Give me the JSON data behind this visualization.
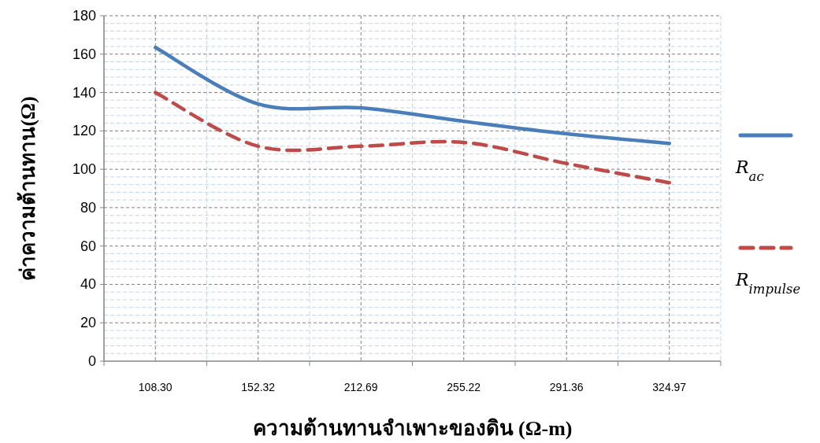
{
  "chart_data": {
    "type": "line",
    "xlabel": "ความต้านทานจำเพาะของดิน (Ω-m)",
    "ylabel": "ค่าความต้านทาน(Ω)",
    "categories": [
      "108.30",
      "152.32",
      "212.69",
      "255.22",
      "291.36",
      "324.97"
    ],
    "series": [
      {
        "name": "R$_{ac}$",
        "color": "#4a7ebb",
        "line_style": "solid",
        "values": [
          163.5,
          134,
          132,
          125,
          118.5,
          113.5
        ]
      },
      {
        "name": "R$_{impulse}$",
        "color": "#be4b48",
        "line_style": "dashed",
        "values": [
          140,
          112,
          112,
          114,
          103,
          93
        ]
      }
    ],
    "ylim": [
      0,
      180
    ],
    "yticks": [
      0,
      20,
      40,
      60,
      80,
      100,
      120,
      140,
      160,
      180
    ],
    "grid": true,
    "legend": "right"
  }
}
